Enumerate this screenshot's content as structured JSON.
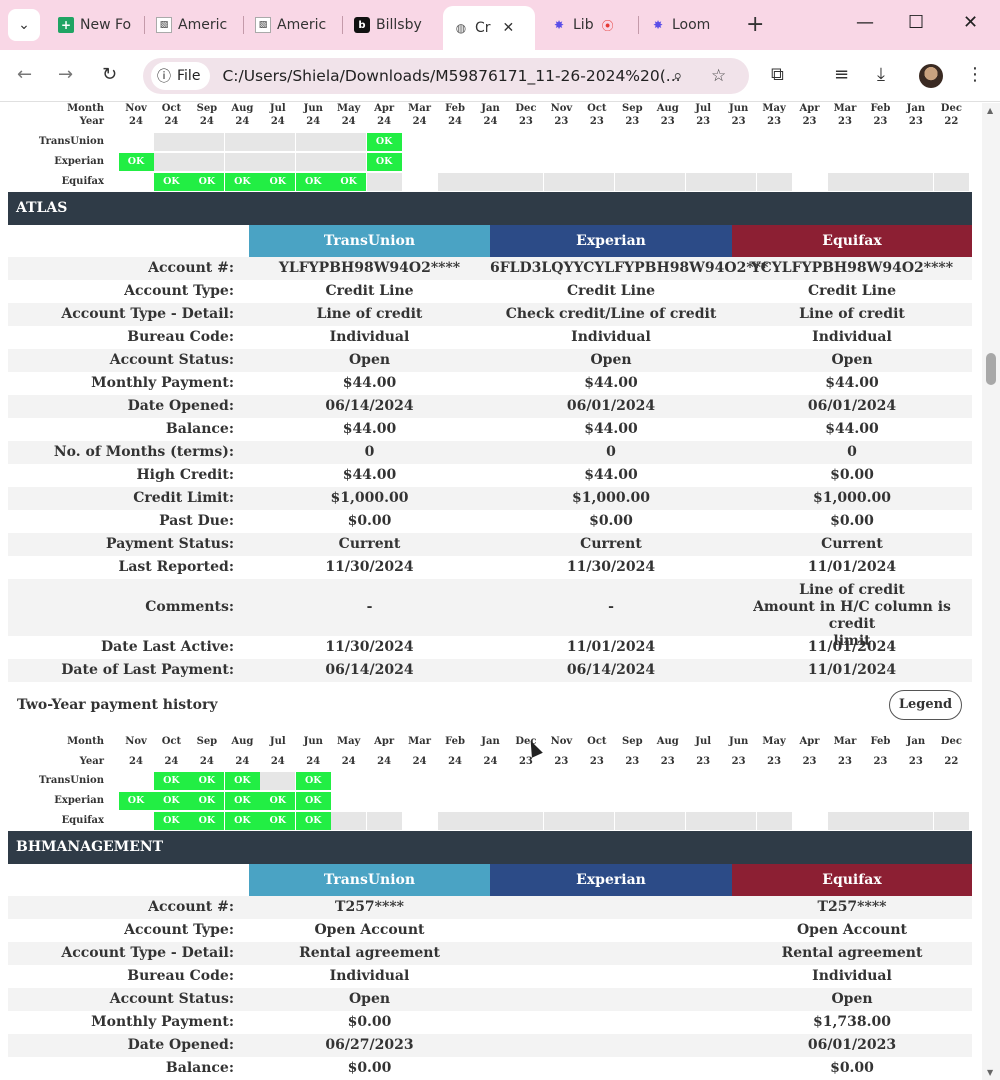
{
  "browser": {
    "tabs": [
      {
        "label": "New Fo",
        "icon": "sheets-icon"
      },
      {
        "label": "Americ",
        "icon": "doc-icon"
      },
      {
        "label": "Americ",
        "icon": "doc-icon"
      },
      {
        "label": "Billsby",
        "icon": "billsby-icon"
      },
      {
        "label": "Cr",
        "icon": "globe-icon",
        "active": true
      },
      {
        "label": "Lib",
        "icon": "loom-icon"
      },
      {
        "label": "Loom",
        "icon": "loom-icon"
      }
    ],
    "file_chip": "File",
    "url": "C:/Users/Shiela/Downloads/M59876171_11-26-2024%20(..."
  },
  "top_history": {
    "months": [
      "Month",
      "Nov",
      "Oct",
      "Sep",
      "Aug",
      "Jul",
      "Jun",
      "May",
      "Apr",
      "Mar",
      "Feb",
      "Jan",
      "Dec",
      "Nov",
      "Oct",
      "Sep",
      "Aug",
      "Jul",
      "Jun",
      "May",
      "Apr",
      "Mar",
      "Feb",
      "Jan",
      "Dec"
    ],
    "year_label": "Year",
    "years": [
      "24",
      "24",
      "24",
      "24",
      "24",
      "24",
      "24",
      "24",
      "24",
      "24",
      "24",
      "23",
      "23",
      "23",
      "23",
      "23",
      "23",
      "23",
      "23",
      "23",
      "23",
      "23",
      "23",
      "22"
    ],
    "rows": [
      {
        "label": "TransUnion",
        "cells": [
          "",
          "g",
          "g",
          "g",
          "g",
          "g",
          "g",
          "OK",
          "",
          "",
          "",
          "",
          "",
          "",
          "",
          "",
          "",
          "",
          "",
          "",
          "",
          "",
          "",
          ""
        ]
      },
      {
        "label": "Experian",
        "cells": [
          "OK",
          "g",
          "g",
          "g",
          "g",
          "g",
          "g",
          "OK",
          "",
          "",
          "",
          "",
          "",
          "",
          "",
          "",
          "",
          "",
          "",
          "",
          "",
          "",
          "",
          ""
        ]
      },
      {
        "label": "Equifax",
        "cells": [
          "",
          "OK",
          "OK",
          "OK",
          "OK",
          "OK",
          "OK",
          "g",
          "",
          "g",
          "g",
          "g",
          "g",
          "g",
          "g",
          "g",
          "g",
          "g",
          "g",
          "",
          "g",
          "g",
          "g",
          "g"
        ]
      }
    ]
  },
  "atlas": {
    "name": "ATLAS",
    "bureaus": [
      "TransUnion",
      "Experian",
      "Equifax"
    ],
    "rows": [
      {
        "label": "Account #:",
        "values": [
          "YLFYPBH98W94O2****",
          "6FLD3LQYYCYLFYPBH98W94O2***",
          "YCYLFYPBH98W94O2****"
        ]
      },
      {
        "label": "Account Type:",
        "values": [
          "Credit Line",
          "Credit Line",
          "Credit Line"
        ]
      },
      {
        "label": "Account Type - Detail:",
        "values": [
          "Line of credit",
          "Check credit/Line of credit",
          "Line of credit"
        ]
      },
      {
        "label": "Bureau Code:",
        "values": [
          "Individual",
          "Individual",
          "Individual"
        ]
      },
      {
        "label": "Account Status:",
        "values": [
          "Open",
          "Open",
          "Open"
        ]
      },
      {
        "label": "Monthly Payment:",
        "values": [
          "$44.00",
          "$44.00",
          "$44.00"
        ]
      },
      {
        "label": "Date Opened:",
        "values": [
          "06/14/2024",
          "06/01/2024",
          "06/01/2024"
        ]
      },
      {
        "label": "Balance:",
        "values": [
          "$44.00",
          "$44.00",
          "$44.00"
        ]
      },
      {
        "label": "No. of Months (terms):",
        "values": [
          "0",
          "0",
          "0"
        ]
      },
      {
        "label": "High Credit:",
        "values": [
          "$44.00",
          "$44.00",
          "$0.00"
        ]
      },
      {
        "label": "Credit Limit:",
        "values": [
          "$1,000.00",
          "$1,000.00",
          "$1,000.00"
        ]
      },
      {
        "label": "Past Due:",
        "values": [
          "$0.00",
          "$0.00",
          "$0.00"
        ]
      },
      {
        "label": "Payment Status:",
        "values": [
          "Current",
          "Current",
          "Current"
        ]
      },
      {
        "label": "Last Reported:",
        "values": [
          "11/30/2024",
          "11/30/2024",
          "11/01/2024"
        ]
      },
      {
        "label": "Comments:",
        "values": [
          "-",
          "-",
          "Line of credit\nAmount in H/C column is credit\nlimit"
        ]
      },
      {
        "label": "Date Last Active:",
        "values": [
          "11/30/2024",
          "11/01/2024",
          "11/01/2024"
        ]
      },
      {
        "label": "Date of Last Payment:",
        "values": [
          "06/14/2024",
          "06/14/2024",
          "11/01/2024"
        ]
      }
    ],
    "history_title": "Two-Year payment history",
    "legend_label": "Legend",
    "history": {
      "rows": [
        {
          "label": "TransUnion",
          "cells": [
            "",
            "OK",
            "OK",
            "OK",
            "g",
            "OK",
            "",
            "",
            "",
            "",
            "",
            "",
            "",
            "",
            "",
            "",
            "",
            "",
            "",
            "",
            "",
            "",
            "",
            ""
          ]
        },
        {
          "label": "Experian",
          "cells": [
            "OK",
            "OK",
            "OK",
            "OK",
            "OK",
            "OK",
            "",
            "",
            "",
            "",
            "",
            "",
            "",
            "",
            "",
            "",
            "",
            "",
            "",
            "",
            "",
            "",
            "",
            ""
          ]
        },
        {
          "label": "Equifax",
          "cells": [
            "",
            "OK",
            "OK",
            "OK",
            "OK",
            "OK",
            "g",
            "g",
            "",
            "g",
            "g",
            "g",
            "g",
            "g",
            "g",
            "g",
            "g",
            "g",
            "g",
            "",
            "g",
            "g",
            "g",
            "g"
          ]
        }
      ]
    }
  },
  "bhmanagement": {
    "name": "BHMANAGEMENT",
    "bureaus": [
      "TransUnion",
      "Experian",
      "Equifax"
    ],
    "rows": [
      {
        "label": "Account #:",
        "values": [
          "T257****",
          "",
          "T257****"
        ]
      },
      {
        "label": "Account Type:",
        "values": [
          "Open Account",
          "",
          "Open Account"
        ]
      },
      {
        "label": "Account Type - Detail:",
        "values": [
          "Rental agreement",
          "",
          "Rental agreement"
        ]
      },
      {
        "label": "Bureau Code:",
        "values": [
          "Individual",
          "",
          "Individual"
        ]
      },
      {
        "label": "Account Status:",
        "values": [
          "Open",
          "",
          "Open"
        ]
      },
      {
        "label": "Monthly Payment:",
        "values": [
          "$0.00",
          "",
          "$1,738.00"
        ]
      },
      {
        "label": "Date Opened:",
        "values": [
          "06/27/2023",
          "",
          "06/01/2023"
        ]
      },
      {
        "label": "Balance:",
        "values": [
          "$0.00",
          "",
          "$0.00"
        ]
      }
    ]
  }
}
